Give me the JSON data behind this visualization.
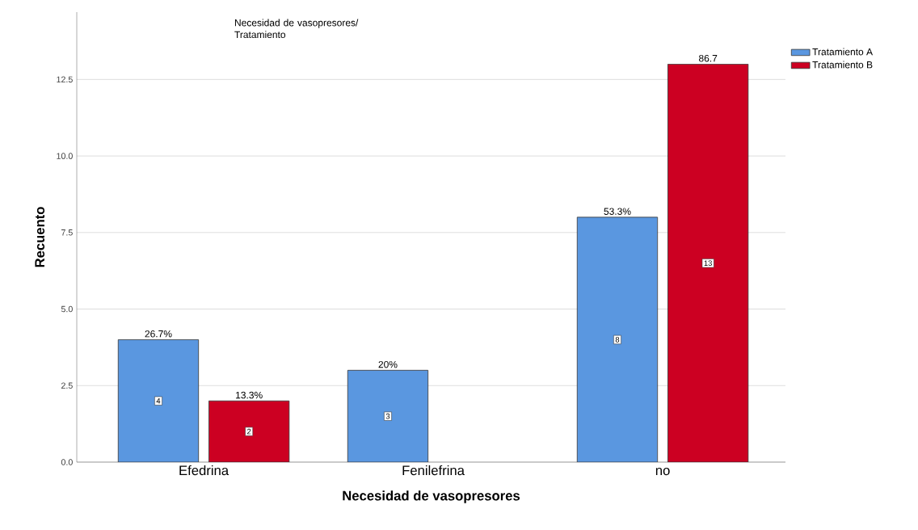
{
  "chart_data": {
    "type": "bar",
    "xlabel": "Necesidad de vasopresores",
    "ylabel": "Recuento",
    "legend_title": "Necesidad de vasopresores/ Tratamiento",
    "categories": [
      "Efedrina",
      "Fenilefrina",
      "no"
    ],
    "series": [
      {
        "name": "Tratamiento A",
        "color": "#5a97e0",
        "values": [
          4,
          3,
          8
        ]
      },
      {
        "name": "Tratamiento B",
        "color": "#cc0022",
        "values": [
          2,
          null,
          13
        ]
      }
    ],
    "annotations": [
      "26.7%",
      "13.3%",
      "20%",
      "53.3%",
      "86.7"
    ],
    "ylim": [
      0,
      14.7
    ],
    "yticks": [
      {
        "value": 0,
        "label": "0.0"
      },
      {
        "value": 2.5,
        "label": "2.5"
      },
      {
        "value": 5,
        "label": "5.0"
      },
      {
        "value": 7.5,
        "label": "7.5"
      },
      {
        "value": 10,
        "label": "10.0"
      },
      {
        "value": 12.5,
        "label": "12.5"
      }
    ],
    "grid": "y",
    "legend": "top right",
    "data_labels": true
  }
}
